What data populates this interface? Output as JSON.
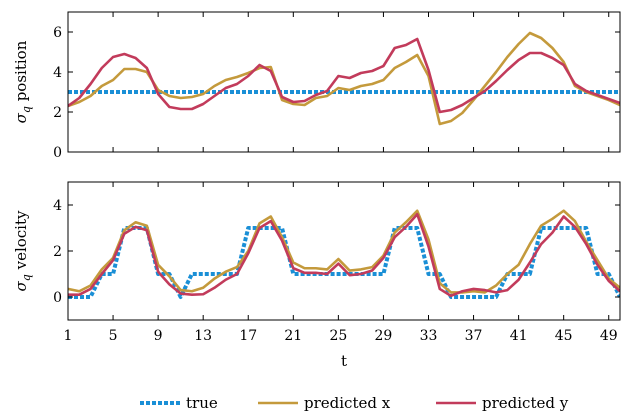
{
  "colors": {
    "true": "#1a8fd6",
    "predicted_x": "#c49a3c",
    "predicted_y": "#c23b5b"
  },
  "chart_data": [
    {
      "type": "line",
      "ylabel": "σ_q position",
      "ylim": [
        0,
        7
      ],
      "yticks": [
        0,
        2,
        4,
        6
      ],
      "xlim": [
        1,
        50
      ],
      "grid": false,
      "series": [
        {
          "name": "true",
          "style": "dotted",
          "x": [
            1,
            2,
            3,
            4,
            5,
            6,
            7,
            8,
            9,
            10,
            11,
            12,
            13,
            14,
            15,
            16,
            17,
            18,
            19,
            20,
            21,
            22,
            23,
            24,
            25,
            26,
            27,
            28,
            29,
            30,
            31,
            32,
            33,
            34,
            35,
            36,
            37,
            38,
            39,
            40,
            41,
            42,
            43,
            44,
            45,
            46,
            47,
            48,
            49,
            50
          ],
          "values": [
            3,
            3,
            3,
            3,
            3,
            3,
            3,
            3,
            3,
            3,
            3,
            3,
            3,
            3,
            3,
            3,
            3,
            3,
            3,
            3,
            3,
            3,
            3,
            3,
            3,
            3,
            3,
            3,
            3,
            3,
            3,
            3,
            3,
            3,
            3,
            3,
            3,
            3,
            3,
            3,
            3,
            3,
            3,
            3,
            3,
            3,
            3,
            3,
            3,
            3
          ]
        },
        {
          "name": "predicted x",
          "x": [
            1,
            2,
            3,
            4,
            5,
            6,
            7,
            8,
            9,
            10,
            11,
            12,
            13,
            14,
            15,
            16,
            17,
            18,
            19,
            20,
            21,
            22,
            23,
            24,
            25,
            26,
            27,
            28,
            29,
            30,
            31,
            32,
            33,
            34,
            35,
            36,
            37,
            38,
            39,
            40,
            41,
            42,
            43,
            44,
            45,
            46,
            47,
            48,
            49,
            50
          ],
          "values": [
            2.3,
            2.5,
            2.8,
            3.3,
            3.6,
            4.15,
            4.15,
            4.0,
            3.1,
            2.8,
            2.7,
            2.75,
            2.9,
            3.3,
            3.6,
            3.75,
            3.95,
            4.2,
            4.25,
            2.6,
            2.4,
            2.35,
            2.7,
            2.8,
            3.2,
            3.1,
            3.3,
            3.4,
            3.6,
            4.2,
            4.5,
            4.85,
            3.8,
            1.4,
            1.55,
            1.95,
            2.6,
            3.3,
            4.0,
            4.75,
            5.4,
            5.95,
            5.7,
            5.2,
            4.5,
            3.3,
            3.0,
            2.8,
            2.6,
            2.35
          ]
        },
        {
          "name": "predicted y",
          "x": [
            1,
            2,
            3,
            4,
            5,
            6,
            7,
            8,
            9,
            10,
            11,
            12,
            13,
            14,
            15,
            16,
            17,
            18,
            19,
            20,
            21,
            22,
            23,
            24,
            25,
            26,
            27,
            28,
            29,
            30,
            31,
            32,
            33,
            34,
            35,
            36,
            37,
            38,
            39,
            40,
            41,
            42,
            43,
            44,
            45,
            46,
            47,
            48,
            49,
            50
          ],
          "values": [
            2.3,
            2.7,
            3.4,
            4.2,
            4.75,
            4.9,
            4.7,
            4.2,
            2.9,
            2.25,
            2.15,
            2.15,
            2.4,
            2.8,
            3.2,
            3.4,
            3.8,
            4.35,
            4.05,
            2.75,
            2.5,
            2.55,
            2.85,
            3.05,
            3.8,
            3.7,
            3.95,
            4.05,
            4.3,
            5.2,
            5.35,
            5.65,
            4.1,
            2.0,
            2.1,
            2.35,
            2.7,
            3.05,
            3.55,
            4.1,
            4.6,
            4.95,
            4.95,
            4.7,
            4.35,
            3.4,
            3.05,
            2.85,
            2.65,
            2.45
          ]
        }
      ]
    },
    {
      "type": "line",
      "xlabel": "t",
      "ylabel": "σ_q velocity",
      "ylim": [
        -1,
        5
      ],
      "yticks": [
        0,
        2,
        4
      ],
      "xlim": [
        1,
        50
      ],
      "xticks": [
        1,
        5,
        9,
        13,
        17,
        21,
        25,
        29,
        33,
        37,
        41,
        45,
        49
      ],
      "grid": false,
      "series": [
        {
          "name": "true",
          "style": "dotted",
          "x": [
            1,
            2,
            3,
            4,
            5,
            6,
            7,
            8,
            9,
            10,
            11,
            12,
            13,
            14,
            15,
            16,
            17,
            18,
            19,
            20,
            21,
            22,
            23,
            24,
            25,
            26,
            27,
            28,
            29,
            30,
            31,
            32,
            33,
            34,
            35,
            36,
            37,
            38,
            39,
            40,
            41,
            42,
            43,
            44,
            45,
            46,
            47,
            48,
            49,
            50
          ],
          "values": [
            0,
            0,
            0,
            1,
            1,
            3,
            3,
            3,
            1,
            1,
            0,
            1,
            1,
            1,
            1,
            1,
            3,
            3,
            3,
            3,
            1,
            1,
            1,
            1,
            1,
            1,
            1,
            1,
            1,
            3,
            3,
            3,
            1,
            1,
            0,
            0,
            0,
            0,
            0,
            1,
            1,
            1,
            3,
            3,
            3,
            3,
            3,
            1,
            1,
            0
          ]
        },
        {
          "name": "predicted x",
          "x": [
            1,
            2,
            3,
            4,
            5,
            6,
            7,
            8,
            9,
            10,
            11,
            12,
            13,
            14,
            15,
            16,
            17,
            18,
            19,
            20,
            21,
            22,
            23,
            24,
            25,
            26,
            27,
            28,
            29,
            30,
            31,
            32,
            33,
            34,
            35,
            36,
            37,
            38,
            39,
            40,
            41,
            42,
            43,
            44,
            45,
            46,
            47,
            48,
            49,
            50
          ],
          "values": [
            0.35,
            0.25,
            0.5,
            1.2,
            1.7,
            2.9,
            3.25,
            3.1,
            1.4,
            0.9,
            0.3,
            0.25,
            0.4,
            0.8,
            1.1,
            1.3,
            2.0,
            3.2,
            3.5,
            2.6,
            1.5,
            1.25,
            1.25,
            1.2,
            1.65,
            1.15,
            1.2,
            1.3,
            1.8,
            2.8,
            3.25,
            3.75,
            2.5,
            0.6,
            0.2,
            0.2,
            0.25,
            0.2,
            0.5,
            1.0,
            1.4,
            2.3,
            3.1,
            3.4,
            3.75,
            3.3,
            2.4,
            1.6,
            0.8,
            0.4
          ]
        },
        {
          "name": "predicted y",
          "x": [
            1,
            2,
            3,
            4,
            5,
            6,
            7,
            8,
            9,
            10,
            11,
            12,
            13,
            14,
            15,
            16,
            17,
            18,
            19,
            20,
            21,
            22,
            23,
            24,
            25,
            26,
            27,
            28,
            29,
            30,
            31,
            32,
            33,
            34,
            35,
            36,
            37,
            38,
            39,
            40,
            41,
            42,
            43,
            44,
            45,
            46,
            47,
            48,
            49,
            50
          ],
          "values": [
            0.1,
            0.1,
            0.35,
            1.0,
            1.6,
            2.75,
            3.05,
            2.9,
            1.1,
            0.55,
            0.15,
            0.1,
            0.12,
            0.4,
            0.75,
            1.0,
            1.9,
            3.0,
            3.3,
            2.45,
            1.25,
            1.05,
            1.05,
            1.0,
            1.45,
            0.95,
            1.0,
            1.15,
            1.7,
            2.6,
            3.05,
            3.6,
            2.2,
            0.35,
            0.05,
            0.25,
            0.35,
            0.3,
            0.2,
            0.3,
            0.75,
            1.5,
            2.3,
            2.8,
            3.5,
            3.05,
            2.3,
            1.4,
            0.7,
            0.25
          ]
        }
      ]
    }
  ],
  "legend": {
    "placement": "bottom",
    "entries": [
      {
        "label": "true",
        "key": "true",
        "style": "dotted"
      },
      {
        "label": "predicted x",
        "key": "predicted_x",
        "style": "solid"
      },
      {
        "label": "predicted y",
        "key": "predicted_y",
        "style": "solid"
      }
    ]
  }
}
